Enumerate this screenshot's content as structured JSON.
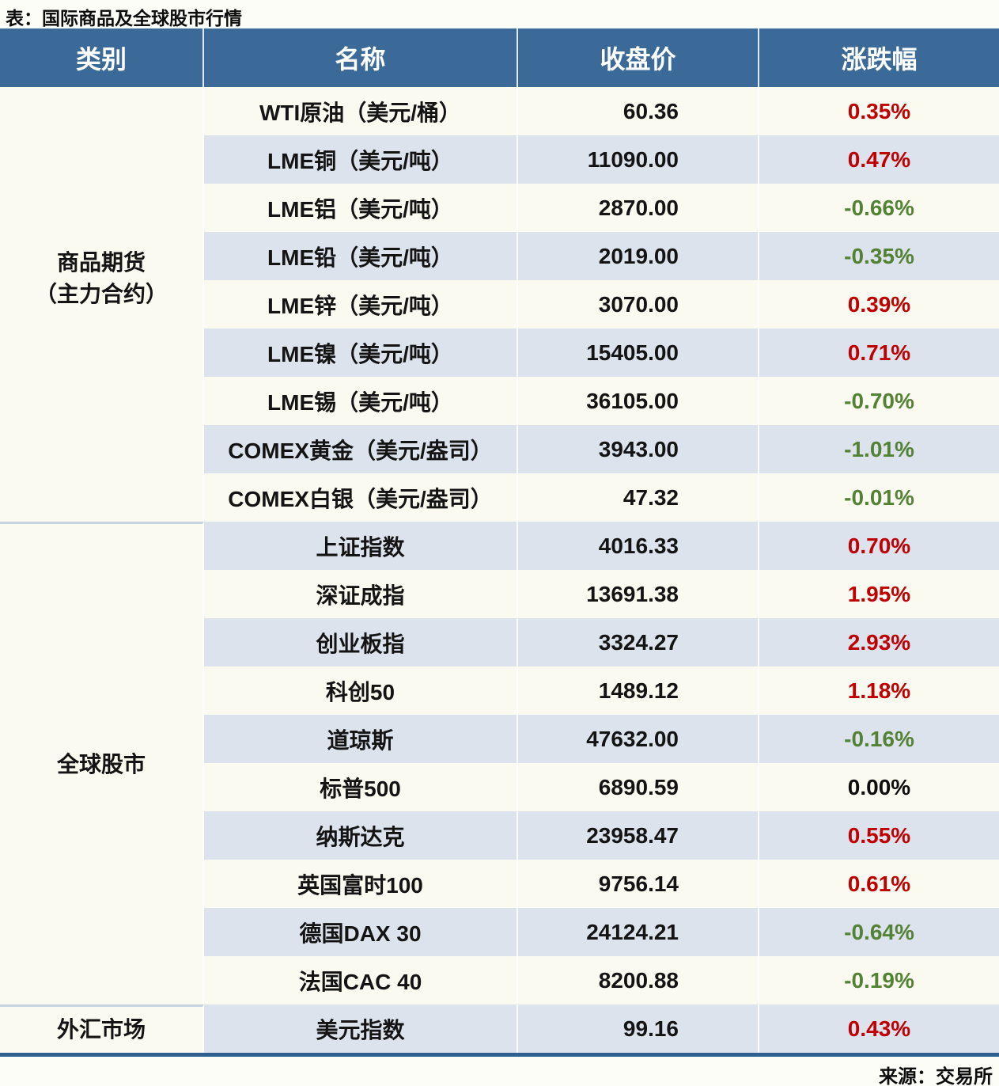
{
  "title": "表：国际商品及全球股市行情",
  "source": "来源：交易所",
  "colors": {
    "up": "#c00000",
    "down": "#548235",
    "flat": "#0d0d0d",
    "header_bg": "#3b6a99",
    "stripe_blue": "#dce3ed",
    "row_cream": "#fbfaf1",
    "bottom_border": "#2f5f8e",
    "section_divider": "#c8d4e2"
  },
  "chart_data": {
    "type": "table",
    "title": "表：国际商品及全球股市行情",
    "source": "来源：交易所",
    "columns": [
      "类别",
      "名称",
      "收盘价",
      "涨跌幅"
    ],
    "sections": [
      {
        "category_line1": "商品期货",
        "category_line2": "（主力合约）",
        "rows": [
          {
            "name": "WTI原油（美元/桶）",
            "close": "60.36",
            "change": "0.35%"
          },
          {
            "name": "LME铜（美元/吨）",
            "close": "11090.00",
            "change": "0.47%"
          },
          {
            "name": "LME铝（美元/吨）",
            "close": "2870.00",
            "change": "-0.66%"
          },
          {
            "name": "LME铅（美元/吨）",
            "close": "2019.00",
            "change": "-0.35%"
          },
          {
            "name": "LME锌（美元/吨）",
            "close": "3070.00",
            "change": "0.39%"
          },
          {
            "name": "LME镍（美元/吨）",
            "close": "15405.00",
            "change": "0.71%"
          },
          {
            "name": "LME锡（美元/吨）",
            "close": "36105.00",
            "change": "-0.70%"
          },
          {
            "name": "COMEX黄金（美元/盎司）",
            "close": "3943.00",
            "change": "-1.01%"
          },
          {
            "name": "COMEX白银（美元/盎司）",
            "close": "47.32",
            "change": "-0.01%"
          }
        ]
      },
      {
        "category_line1": "全球股市",
        "category_line2": "",
        "rows": [
          {
            "name": "上证指数",
            "close": "4016.33",
            "change": "0.70%"
          },
          {
            "name": "深证成指",
            "close": "13691.38",
            "change": "1.95%"
          },
          {
            "name": "创业板指",
            "close": "3324.27",
            "change": "2.93%"
          },
          {
            "name": "科创50",
            "close": "1489.12",
            "change": "1.18%"
          },
          {
            "name": "道琼斯",
            "close": "47632.00",
            "change": "-0.16%"
          },
          {
            "name": "标普500",
            "close": "6890.59",
            "change": "0.00%"
          },
          {
            "name": "纳斯达克",
            "close": "23958.47",
            "change": "0.55%"
          },
          {
            "name": "英国富时100",
            "close": "9756.14",
            "change": "0.61%"
          },
          {
            "name": "德国DAX 30",
            "close": "24124.21",
            "change": "-0.64%"
          },
          {
            "name": "法国CAC 40",
            "close": "8200.88",
            "change": "-0.19%"
          }
        ]
      },
      {
        "category_line1": "外汇市场",
        "category_line2": "",
        "rows": [
          {
            "name": "美元指数",
            "close": "99.16",
            "change": "0.43%"
          }
        ]
      }
    ]
  }
}
